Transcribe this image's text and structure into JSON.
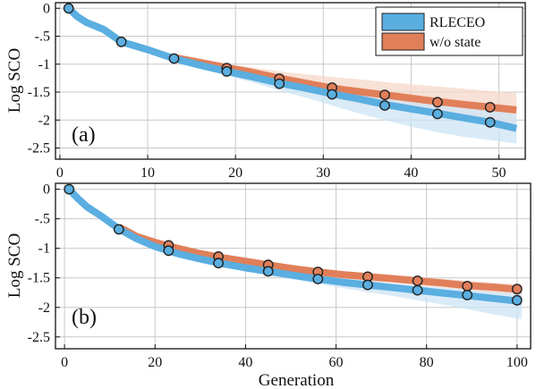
{
  "colors": {
    "rleceo": "#5aaee0",
    "rleceo_band": "#cde4f5",
    "wo_state": "#e07f5a",
    "wo_state_band": "#f6d7c8",
    "marker_edge": "#222222",
    "grid": "#c8c8c8"
  },
  "legend": {
    "rleceo": "RLECEO",
    "wo_state": "w/o state"
  },
  "chart_data": [
    {
      "type": "line",
      "panel_label": "(a)",
      "ylabel": "Log SCO",
      "xlabel": "",
      "xlim": [
        -0.5,
        53
      ],
      "ylim": [
        -2.7,
        0.1
      ],
      "xticks": [
        0,
        10,
        20,
        30,
        40,
        50
      ],
      "yticks": [
        0,
        -0.5,
        -1,
        -1.5,
        -2,
        -2.5
      ],
      "grid": true,
      "legend_position": "top-right",
      "series": [
        {
          "name": "RLECEO",
          "x": [
            1,
            2,
            3,
            5,
            7,
            10,
            13,
            16,
            19,
            22,
            25,
            28,
            31,
            34,
            37,
            40,
            43,
            46,
            49,
            52
          ],
          "values": [
            0,
            -0.15,
            -0.25,
            -0.38,
            -0.6,
            -0.74,
            -0.9,
            -1.02,
            -1.13,
            -1.23,
            -1.34,
            -1.43,
            -1.53,
            -1.62,
            -1.72,
            -1.8,
            -1.88,
            -1.96,
            -2.04,
            -2.15
          ],
          "band_upper": [
            0,
            -0.13,
            -0.22,
            -0.34,
            -0.56,
            -0.7,
            -0.86,
            -0.97,
            -1.06,
            -1.14,
            -1.22,
            -1.29,
            -1.36,
            -1.44,
            -1.52,
            -1.59,
            -1.67,
            -1.75,
            -1.82,
            -1.9
          ],
          "band_lower": [
            0,
            -0.17,
            -0.28,
            -0.42,
            -0.64,
            -0.78,
            -0.94,
            -1.08,
            -1.2,
            -1.33,
            -1.47,
            -1.6,
            -1.74,
            -1.88,
            -2.0,
            -2.12,
            -2.22,
            -2.3,
            -2.36,
            -2.42
          ],
          "markers_x": [
            1,
            7,
            13,
            19,
            25,
            31,
            37,
            43,
            49
          ],
          "markers_y": [
            0,
            -0.6,
            -0.9,
            -1.13,
            -1.35,
            -1.54,
            -1.74,
            -1.89,
            -2.04
          ]
        },
        {
          "name": "w/o state",
          "x": [
            13,
            16,
            19,
            22,
            25,
            28,
            31,
            34,
            37,
            40,
            43,
            46,
            49,
            52
          ],
          "values": [
            -0.88,
            -0.97,
            -1.06,
            -1.15,
            -1.25,
            -1.34,
            -1.43,
            -1.49,
            -1.55,
            -1.61,
            -1.67,
            -1.72,
            -1.77,
            -1.82
          ],
          "band_upper": [
            -0.86,
            -0.93,
            -1.0,
            -1.06,
            -1.13,
            -1.18,
            -1.23,
            -1.27,
            -1.32,
            -1.36,
            -1.4,
            -1.44,
            -1.48,
            -1.52
          ],
          "band_lower": [
            -0.9,
            -1.01,
            -1.12,
            -1.24,
            -1.37,
            -1.5,
            -1.62,
            -1.71,
            -1.78,
            -1.85,
            -1.92,
            -1.99,
            -2.05,
            -2.1
          ],
          "markers_x": [
            19,
            25,
            31,
            37,
            43,
            49
          ],
          "markers_y": [
            -1.07,
            -1.26,
            -1.42,
            -1.55,
            -1.68,
            -1.77
          ]
        }
      ]
    },
    {
      "type": "line",
      "panel_label": "(b)",
      "ylabel": "Log SCO",
      "xlabel": "Generation",
      "xlim": [
        -2,
        103
      ],
      "ylim": [
        -2.7,
        0.1
      ],
      "xticks": [
        0,
        20,
        40,
        60,
        80,
        100
      ],
      "yticks": [
        0,
        -0.5,
        -1,
        -1.5,
        -2,
        -2.5
      ],
      "grid": true,
      "series": [
        {
          "name": "RLECEO",
          "x": [
            1,
            3,
            5,
            8,
            12,
            16,
            20,
            25,
            30,
            35,
            40,
            45,
            50,
            56,
            62,
            67,
            72,
            78,
            84,
            89,
            95,
            101
          ],
          "values": [
            0,
            -0.16,
            -0.3,
            -0.45,
            -0.67,
            -0.84,
            -0.97,
            -1.09,
            -1.18,
            -1.26,
            -1.33,
            -1.39,
            -1.45,
            -1.52,
            -1.58,
            -1.62,
            -1.66,
            -1.71,
            -1.76,
            -1.8,
            -1.85,
            -1.9
          ],
          "band_upper": [
            0,
            -0.14,
            -0.27,
            -0.41,
            -0.62,
            -0.79,
            -0.92,
            -1.04,
            -1.13,
            -1.21,
            -1.28,
            -1.34,
            -1.4,
            -1.46,
            -1.51,
            -1.55,
            -1.59,
            -1.63,
            -1.67,
            -1.7,
            -1.74,
            -1.77
          ],
          "band_lower": [
            0,
            -0.18,
            -0.33,
            -0.49,
            -0.72,
            -0.89,
            -1.02,
            -1.14,
            -1.24,
            -1.32,
            -1.39,
            -1.46,
            -1.52,
            -1.6,
            -1.68,
            -1.74,
            -1.8,
            -1.88,
            -1.96,
            -2.03,
            -2.12,
            -2.2
          ],
          "markers_x": [
            1,
            12,
            23,
            34,
            45,
            56,
            67,
            78,
            89,
            100
          ],
          "markers_y": [
            0,
            -0.68,
            -1.04,
            -1.25,
            -1.39,
            -1.52,
            -1.62,
            -1.71,
            -1.79,
            -1.88
          ]
        },
        {
          "name": "w/o state",
          "x": [
            12,
            16,
            20,
            25,
            30,
            35,
            40,
            45,
            50,
            56,
            62,
            67,
            72,
            78,
            84,
            89,
            95,
            101
          ],
          "values": [
            -0.64,
            -0.8,
            -0.9,
            -1.0,
            -1.09,
            -1.16,
            -1.22,
            -1.28,
            -1.34,
            -1.4,
            -1.45,
            -1.48,
            -1.51,
            -1.55,
            -1.59,
            -1.63,
            -1.66,
            -1.7
          ],
          "band_upper": [
            -0.62,
            -0.77,
            -0.87,
            -0.97,
            -1.05,
            -1.12,
            -1.18,
            -1.24,
            -1.29,
            -1.35,
            -1.39,
            -1.42,
            -1.45,
            -1.49,
            -1.52,
            -1.55,
            -1.58,
            -1.61
          ],
          "band_lower": [
            -0.66,
            -0.83,
            -0.93,
            -1.03,
            -1.13,
            -1.2,
            -1.27,
            -1.33,
            -1.39,
            -1.45,
            -1.51,
            -1.55,
            -1.58,
            -1.63,
            -1.67,
            -1.72,
            -1.76,
            -1.8
          ],
          "markers_x": [
            23,
            34,
            45,
            56,
            67,
            78,
            89,
            100
          ],
          "markers_y": [
            -0.95,
            -1.14,
            -1.28,
            -1.4,
            -1.48,
            -1.55,
            -1.64,
            -1.69
          ]
        }
      ]
    }
  ]
}
